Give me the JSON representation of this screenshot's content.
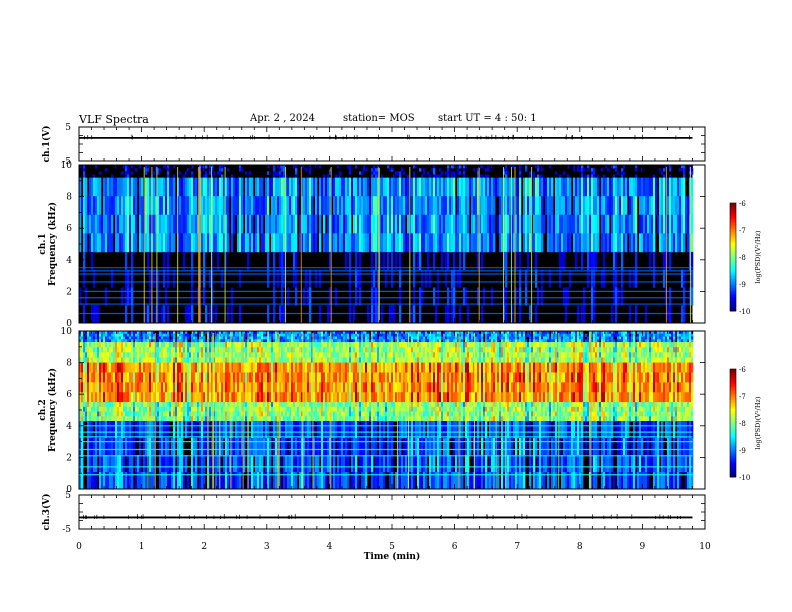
{
  "header": {
    "title": "VLF Spectra",
    "date": "Apr. 2 , 2024",
    "station": "station= MOS",
    "start": "start UT =  4 : 50: 1"
  },
  "chart_data": [
    {
      "type": "line",
      "panel": "ch1-voltage",
      "ylabel": "ch.1(V)",
      "ylim": [
        -5,
        5
      ],
      "yticks": [
        "5",
        "-5"
      ],
      "x": [
        0,
        9.8
      ],
      "series": [
        {
          "values": [
            1.8,
            1.8
          ]
        }
      ],
      "xlim": [
        0,
        10
      ]
    },
    {
      "type": "heatmap",
      "panel": "ch1-spectrogram",
      "ylabel": "ch.1 Frequency (kHz)",
      "ylim": [
        0,
        10
      ],
      "yticks": [
        "0",
        "2",
        "4",
        "6",
        "8",
        "10"
      ],
      "xlim": [
        0,
        10
      ],
      "data_x_end": 9.8,
      "colorbar": {
        "label": "log(PSD)(V²/Hz)",
        "range": [
          -10,
          -6
        ],
        "ticks": [
          "-6",
          "-7",
          "-8",
          "-9",
          "-10"
        ]
      },
      "bands": [
        {
          "f_low": 9.2,
          "f_high": 10,
          "level": -10.0
        },
        {
          "f_low": 4.5,
          "f_high": 9.2,
          "level": -9.0
        },
        {
          "f_low": 0,
          "f_high": 4.5,
          "level": -10.0
        }
      ],
      "lines_khz": [
        0.6,
        1.2,
        1.6,
        2.0,
        2.6,
        3.1,
        3.3,
        3.5
      ],
      "lines_level": -9.1
    },
    {
      "type": "heatmap",
      "panel": "ch2-spectrogram",
      "ylabel": "ch.2 Frequency (kHz)",
      "ylim": [
        0,
        10
      ],
      "yticks": [
        "0",
        "2",
        "4",
        "6",
        "8",
        "10"
      ],
      "xlim": [
        0,
        10
      ],
      "data_x_end": 9.8,
      "colorbar": {
        "label": "log(PSD)(V²/Hz)",
        "range": [
          -10,
          -6
        ],
        "ticks": [
          "-6",
          "-7",
          "-8",
          "-9",
          "-10"
        ]
      },
      "bands": [
        {
          "f_low": 9.3,
          "f_high": 10,
          "level": -9.0
        },
        {
          "f_low": 8.0,
          "f_high": 9.3,
          "level": -7.9
        },
        {
          "f_low": 5.5,
          "f_high": 8.0,
          "level": -7.1
        },
        {
          "f_low": 4.3,
          "f_high": 5.5,
          "level": -8.0
        },
        {
          "f_low": 0,
          "f_high": 4.3,
          "level": -9.3
        }
      ],
      "lines_khz": [
        0.9,
        1.4,
        2.1,
        2.5,
        3.0,
        3.3,
        3.6,
        4.0
      ],
      "lines_level": -8.4
    },
    {
      "type": "line",
      "panel": "ch3-voltage",
      "ylabel": "ch.3(V)",
      "ylim": [
        -5,
        5
      ],
      "yticks": [
        "5",
        "-5"
      ],
      "x": [
        0,
        9.8
      ],
      "series": [
        {
          "values": [
            -1.6,
            -1.6
          ]
        }
      ],
      "xlim": [
        0,
        10
      ],
      "xlabel": "Time  (min)",
      "xticks": [
        "0",
        "1",
        "2",
        "3",
        "4",
        "5",
        "6",
        "7",
        "8",
        "9",
        "10"
      ]
    }
  ],
  "colors": {
    "axis": "#000000",
    "background": "#ffffff"
  }
}
